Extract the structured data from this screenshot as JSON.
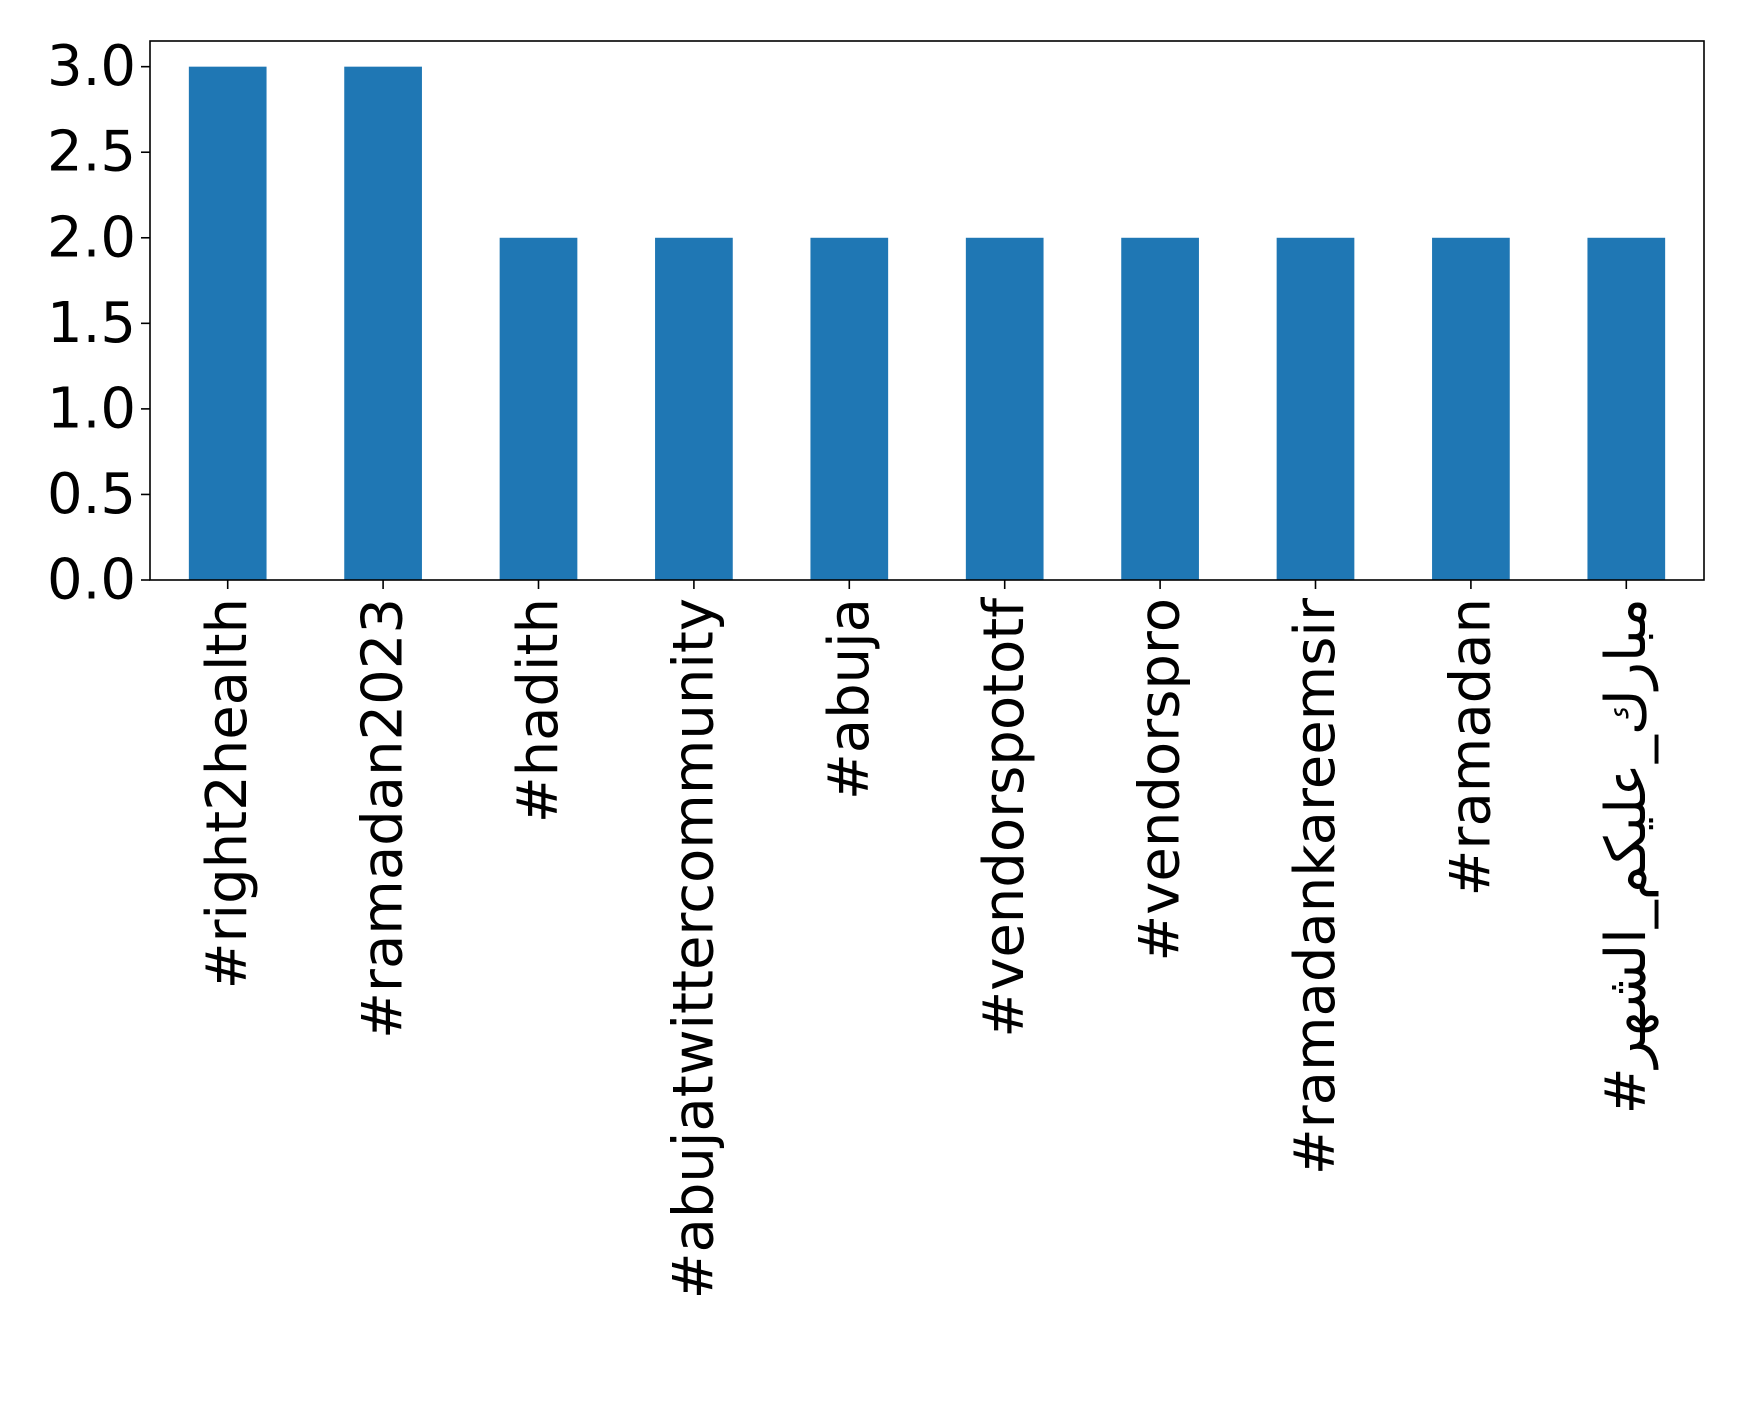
{
  "chart_data": {
    "type": "bar",
    "title": "",
    "xlabel": "",
    "ylabel": "",
    "categories": [
      "#right2health",
      "#ramadan2023",
      "#hadith",
      "#abujatwittercommunity",
      "#abuja",
      "#vendorspototf",
      "#vendorspro",
      "#ramadankareemsir",
      "#ramadan",
      "#مبارك_عليكم_الشهر"
    ],
    "values": [
      3,
      3,
      2,
      2,
      2,
      2,
      2,
      2,
      2,
      2
    ],
    "ylim": [
      0,
      3.15
    ],
    "yticks": [
      "0.0",
      "0.5",
      "1.0",
      "1.5",
      "2.0",
      "2.5",
      "3.0"
    ],
    "grid": false,
    "legend": "none",
    "bar_color": "#1f77b4",
    "axis_color": "#000000"
  }
}
